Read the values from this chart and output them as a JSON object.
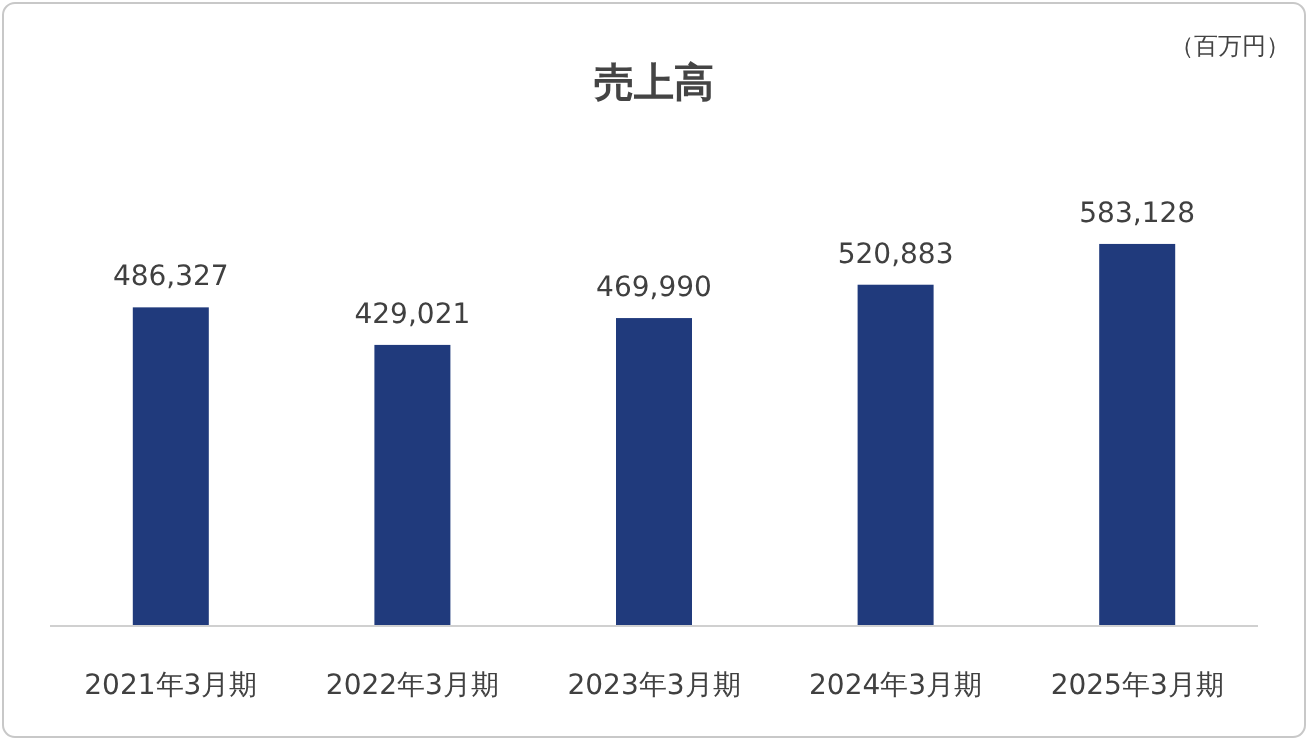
{
  "chart_data": {
    "type": "bar",
    "title": "売上高",
    "categories": [
      "2021年3月期",
      "2022年3月期",
      "2023年3月期",
      "2024年3月期",
      "2025年3月期"
    ],
    "values": [
      486327,
      429021,
      469990,
      520883,
      583128
    ],
    "value_labels": [
      "486,327",
      "429,021",
      "469,990",
      "520,883",
      "583,128"
    ],
    "color": "#203a7c",
    "annotations": [
      "（百万円）"
    ]
  }
}
